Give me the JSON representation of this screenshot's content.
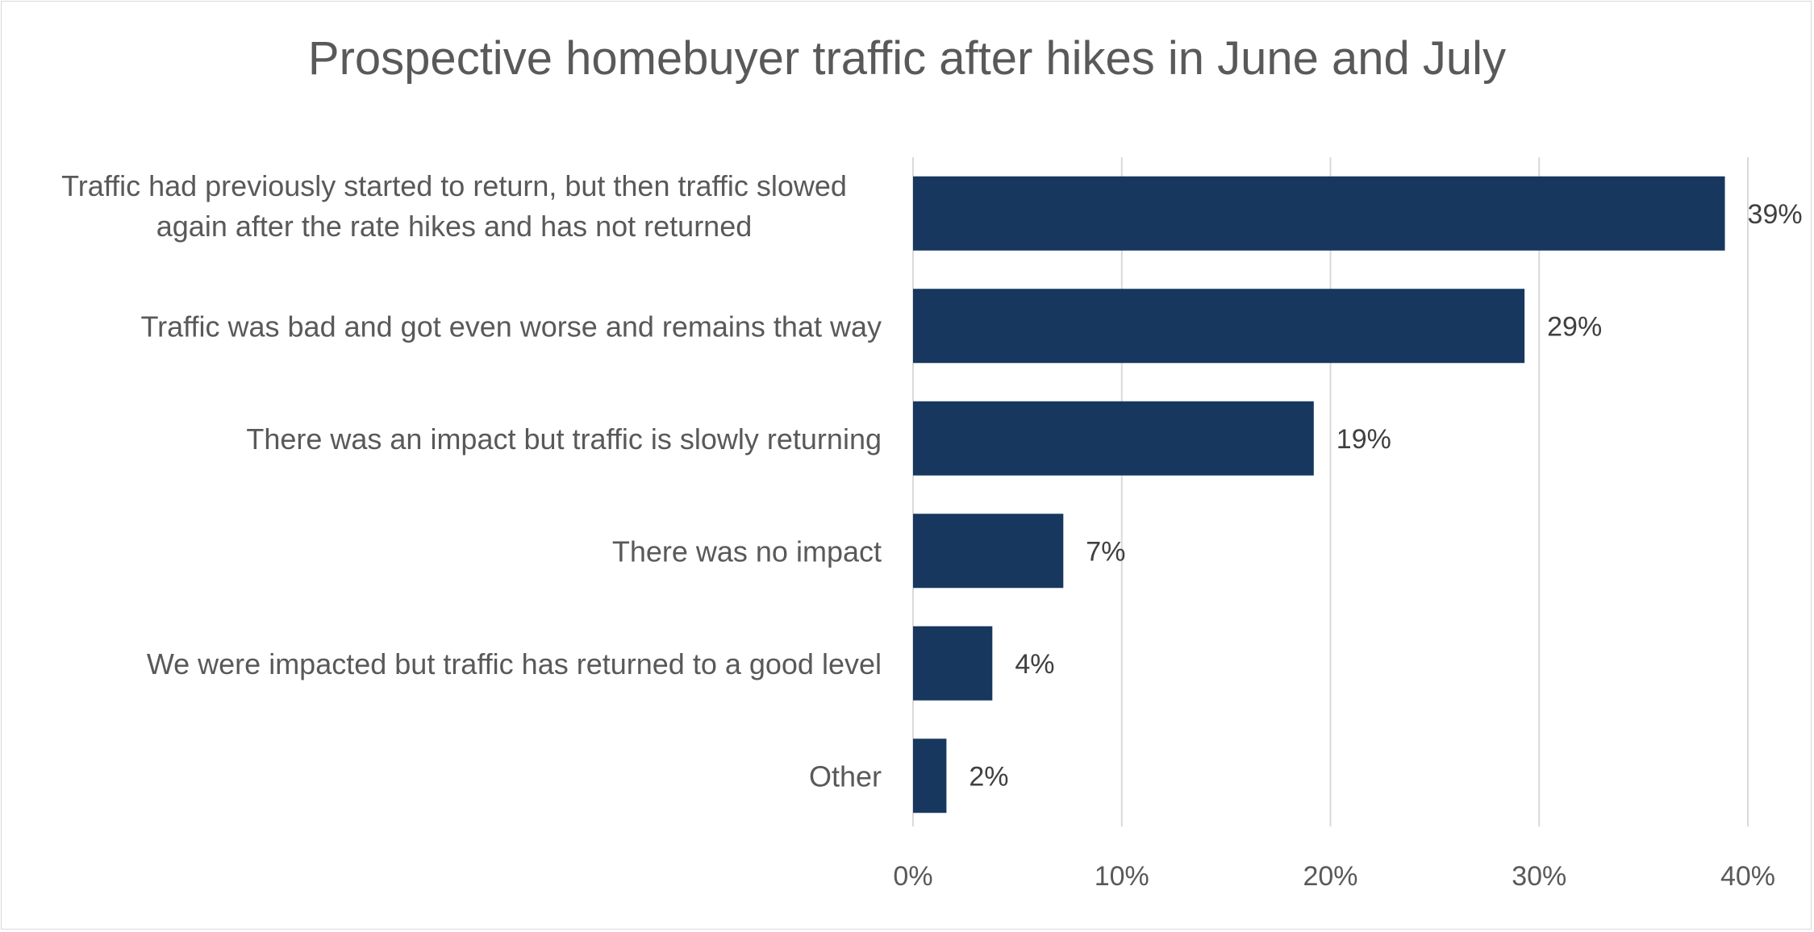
{
  "chart_data": {
    "type": "bar",
    "orientation": "horizontal",
    "title": "Prospective homebuyer traffic after hikes in June and July",
    "xlabel": "",
    "ylabel": "",
    "categories": [
      [
        "Traffic had previously started to return, but then traffic slowed",
        "again after the rate hikes and has not returned"
      ],
      [
        "Traffic was bad and got even worse and remains that way"
      ],
      [
        "There was an impact but traffic is slowly returning"
      ],
      [
        "There was no impact"
      ],
      [
        "We were impacted but traffic has returned to a good level"
      ],
      [
        "Other"
      ]
    ],
    "values": [
      39,
      29,
      19,
      7,
      4,
      2
    ],
    "bar_lengths": [
      38.9,
      29.3,
      19.2,
      7.2,
      3.8,
      1.6
    ],
    "data_labels": [
      "39%",
      "29%",
      "19%",
      "7%",
      "4%",
      "2%"
    ],
    "xlim": [
      0,
      40
    ],
    "xticks": [
      0,
      10,
      20,
      30,
      40
    ],
    "xtick_labels": [
      "0%",
      "10%",
      "20%",
      "30%",
      "40%"
    ],
    "grid": "vertical",
    "legend": "none",
    "colors": {
      "bar": "#17375e",
      "grid": "#d9d9d9",
      "text": "#595959"
    }
  }
}
